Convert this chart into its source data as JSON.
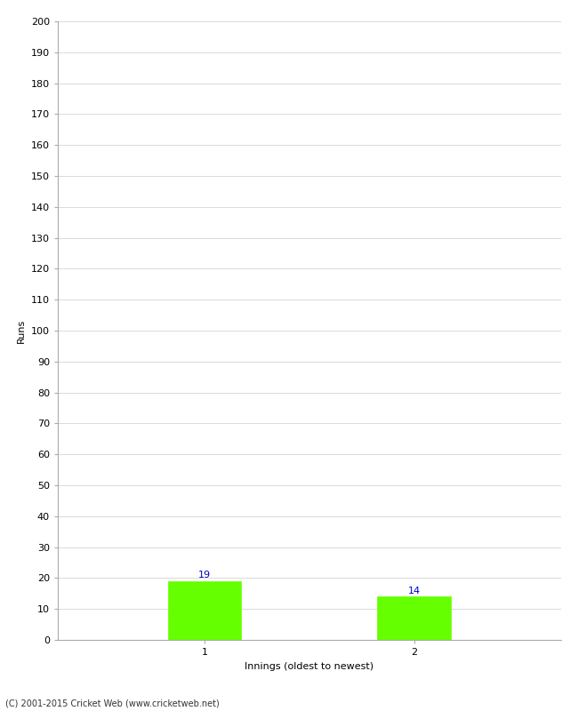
{
  "categories": [
    "1",
    "2"
  ],
  "values": [
    19,
    14
  ],
  "bar_color": "#66ff00",
  "bar_edge_color": "#66ff00",
  "ylabel": "Runs",
  "xlabel": "Innings (oldest to newest)",
  "ylim": [
    0,
    200
  ],
  "ytick_step": 10,
  "value_label_color": "#0000cc",
  "value_label_fontsize": 8,
  "footer_text": "(C) 2001-2015 Cricket Web (www.cricketweb.net)",
  "background_color": "#ffffff",
  "grid_color": "#cccccc",
  "tick_label_fontsize": 8,
  "axis_label_fontsize": 8,
  "bar_width": 0.35,
  "x_positions": [
    1,
    2
  ],
  "xlim": [
    0.3,
    2.7
  ]
}
